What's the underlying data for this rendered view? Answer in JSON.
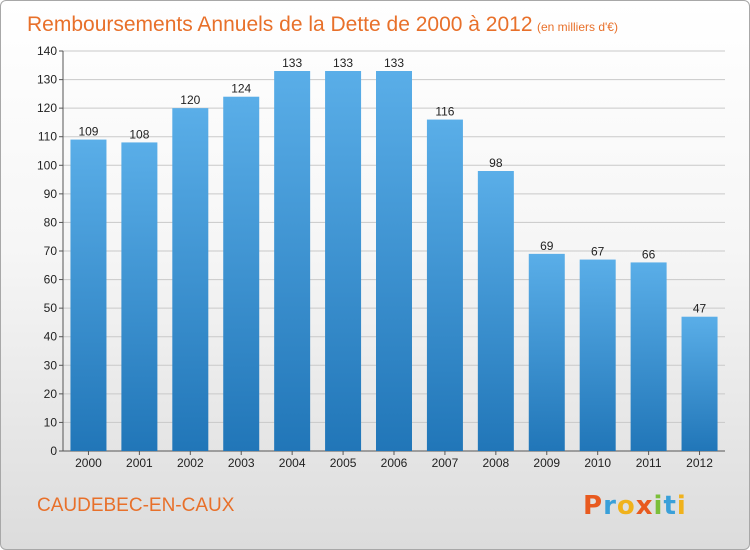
{
  "title": "Remboursements Annuels de la Dette de 2000 à 2012",
  "subtitle": "(en milliers d'€)",
  "location": "CAUDEBEC-EN-CAUX",
  "logo": {
    "text": "Proxiti",
    "letters": [
      {
        "ch": "P",
        "color": "#e85a1f"
      },
      {
        "ch": "r",
        "color": "#3aa0d9"
      },
      {
        "ch": "o",
        "color": "#f0b21c"
      },
      {
        "ch": "x",
        "color": "#e85a1f"
      },
      {
        "ch": "i",
        "color": "#7bbf3a"
      },
      {
        "ch": "t",
        "color": "#3aa0d9"
      },
      {
        "ch": "i",
        "color": "#f0b21c"
      }
    ]
  },
  "colors": {
    "title": "#e8702a",
    "bar_top": "#5aaee8",
    "bar_bottom": "#2176b8",
    "grid": "#c9c9c9"
  },
  "chart_data": {
    "type": "bar",
    "categories": [
      "2000",
      "2001",
      "2002",
      "2003",
      "2004",
      "2005",
      "2006",
      "2007",
      "2008",
      "2009",
      "2010",
      "2011",
      "2012"
    ],
    "values": [
      109,
      108,
      120,
      124,
      133,
      133,
      133,
      116,
      98,
      69,
      67,
      66,
      47
    ],
    "ylim": [
      0,
      140
    ],
    "yticks": [
      0,
      10,
      20,
      30,
      40,
      50,
      60,
      70,
      80,
      90,
      100,
      110,
      120,
      130,
      140
    ],
    "grid": true,
    "data_labels": true
  }
}
